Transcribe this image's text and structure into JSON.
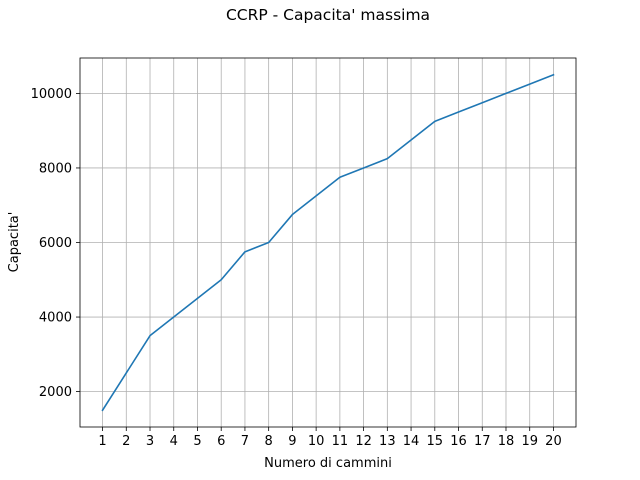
{
  "chart_data": {
    "type": "line",
    "title": "CCRP - Capacita' massima",
    "xlabel": "Numero di cammini",
    "ylabel": "Capacita'",
    "x": [
      1,
      2,
      3,
      4,
      5,
      6,
      7,
      8,
      9,
      10,
      11,
      12,
      13,
      14,
      15,
      16,
      17,
      18,
      19,
      20
    ],
    "series": [
      {
        "values": [
          1500,
          2500,
          3500,
          4000,
          4500,
          5000,
          5750,
          6000,
          6750,
          7250,
          7750,
          8000,
          8250,
          8750,
          9250,
          9500,
          9750,
          10000,
          10250,
          10500
        ],
        "color": "#1f77b4"
      }
    ],
    "xlim": [
      0.05,
      20.95
    ],
    "ylim": [
      1050,
      10950
    ],
    "xticks": [
      "1",
      "2",
      "3",
      "4",
      "5",
      "6",
      "7",
      "8",
      "9",
      "10",
      "11",
      "12",
      "13",
      "14",
      "15",
      "16",
      "17",
      "18",
      "19",
      "20"
    ],
    "yticks": [
      "2000",
      "4000",
      "6000",
      "8000",
      "10000"
    ],
    "grid": true,
    "legend": "none"
  }
}
